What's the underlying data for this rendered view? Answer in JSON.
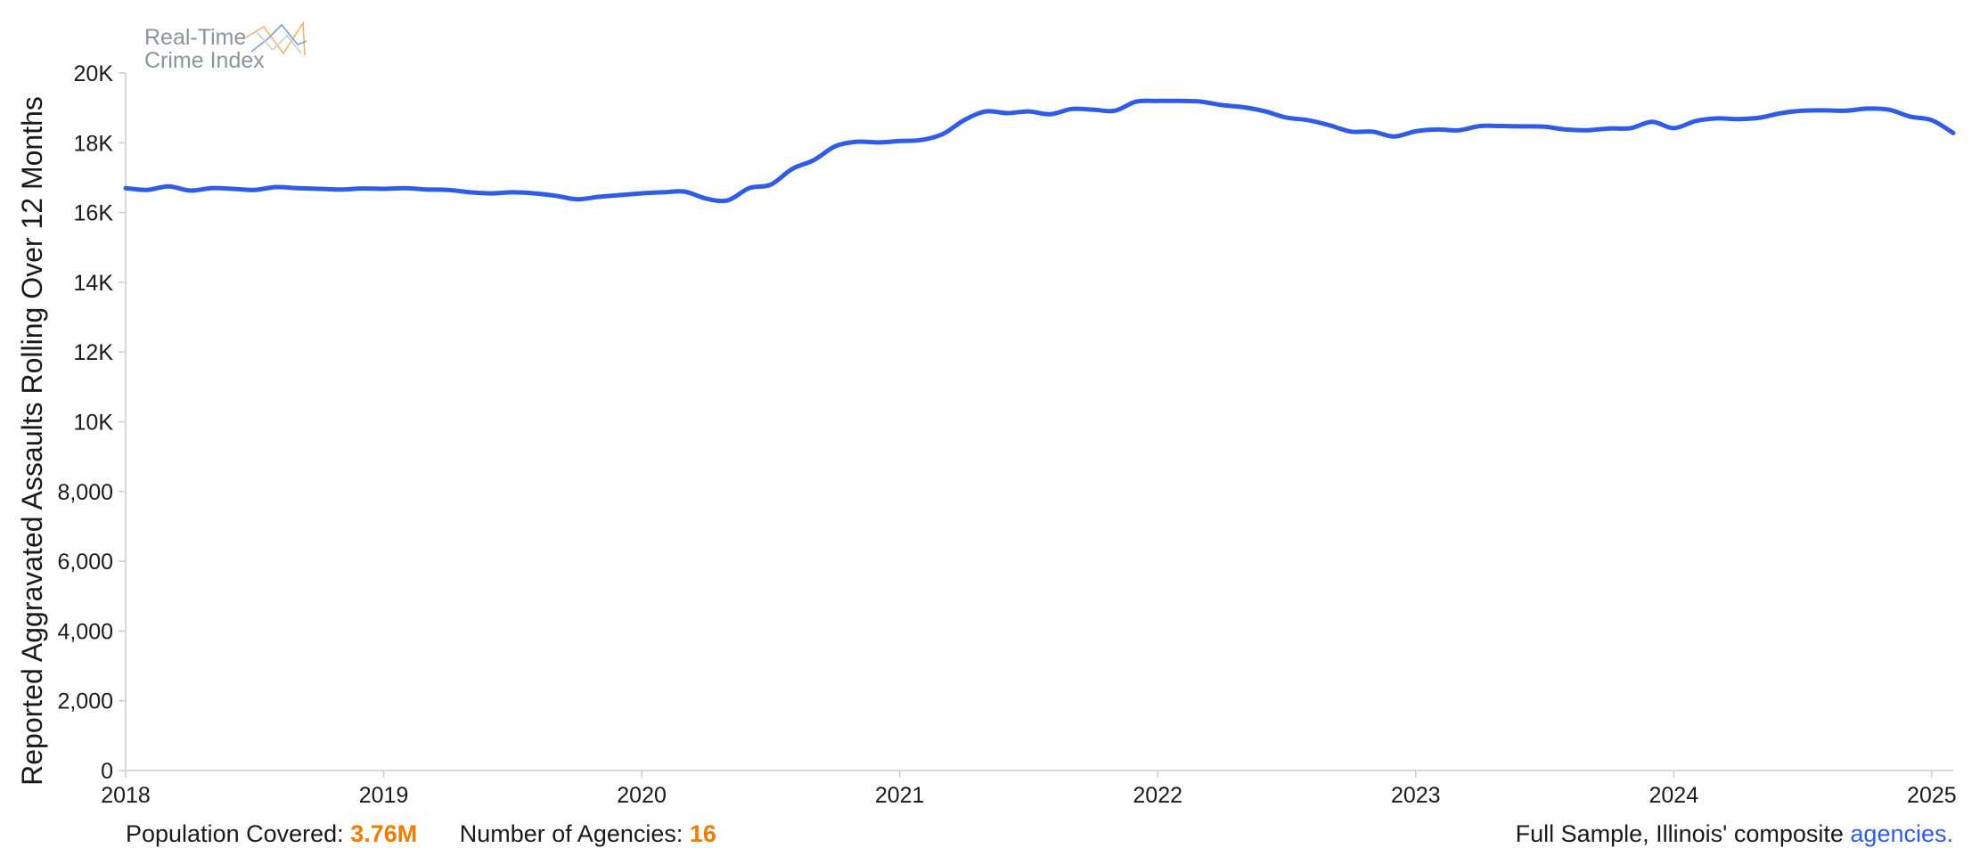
{
  "logo": {
    "line1": "Real-Time",
    "line2": "Crime Index"
  },
  "colors": {
    "line": "#2f5be8",
    "accent": "#f07d00",
    "link": "#2f5be8",
    "axis": "#cccccc",
    "text": "#1a1a1a"
  },
  "footer": {
    "population_label": "Population Covered:",
    "population_value": "3.76M",
    "agencies_label": "Number of Agencies:",
    "agencies_value": "16",
    "sample_text": "Full Sample, Illinois' composite",
    "agencies_link": "agencies."
  },
  "chart_data": {
    "type": "line",
    "title": "",
    "xlabel": "",
    "ylabel": "Reported Aggravated Assaults Rolling Over 12 Months",
    "xlim": [
      "2018-01",
      "2025-02"
    ],
    "ylim": [
      0,
      20000
    ],
    "grid": false,
    "legend": "none",
    "x_ticks": [
      "2018",
      "2019",
      "2020",
      "2021",
      "2022",
      "2023",
      "2024",
      "2025"
    ],
    "y_ticks": [
      {
        "value": 0,
        "label": "0"
      },
      {
        "value": 2000,
        "label": "2,000"
      },
      {
        "value": 4000,
        "label": "4,000"
      },
      {
        "value": 6000,
        "label": "6,000"
      },
      {
        "value": 8000,
        "label": "8,000"
      },
      {
        "value": 10000,
        "label": "10K"
      },
      {
        "value": 12000,
        "label": "12K"
      },
      {
        "value": 14000,
        "label": "14K"
      },
      {
        "value": 16000,
        "label": "16K"
      },
      {
        "value": 18000,
        "label": "18K"
      },
      {
        "value": 20000,
        "label": "20K"
      }
    ],
    "series": [
      {
        "x": [
          "2018-01",
          "2018-02",
          "2018-03",
          "2018-04",
          "2018-05",
          "2018-06",
          "2018-07",
          "2018-08",
          "2018-09",
          "2018-10",
          "2018-11",
          "2018-12",
          "2019-01",
          "2019-02",
          "2019-03",
          "2019-04",
          "2019-05",
          "2019-06",
          "2019-07",
          "2019-08",
          "2019-09",
          "2019-10",
          "2019-11",
          "2019-12",
          "2020-01",
          "2020-02",
          "2020-03",
          "2020-04",
          "2020-05",
          "2020-06",
          "2020-07",
          "2020-08",
          "2020-09",
          "2020-10",
          "2020-11",
          "2020-12",
          "2021-01",
          "2021-02",
          "2021-03",
          "2021-04",
          "2021-05",
          "2021-06",
          "2021-07",
          "2021-08",
          "2021-09",
          "2021-10",
          "2021-11",
          "2021-12",
          "2022-01",
          "2022-02",
          "2022-03",
          "2022-04",
          "2022-05",
          "2022-06",
          "2022-07",
          "2022-08",
          "2022-09",
          "2022-10",
          "2022-11",
          "2022-12",
          "2023-01",
          "2023-02",
          "2023-03",
          "2023-04",
          "2023-05",
          "2023-06",
          "2023-07",
          "2023-08",
          "2023-09",
          "2023-10",
          "2023-11",
          "2023-12",
          "2024-01",
          "2024-02",
          "2024-03",
          "2024-04",
          "2024-05",
          "2024-06",
          "2024-07",
          "2024-08",
          "2024-09",
          "2024-10",
          "2024-11",
          "2024-12",
          "2025-01",
          "2025-02"
        ],
        "values": [
          16700,
          16650,
          16750,
          16630,
          16700,
          16680,
          16650,
          16730,
          16700,
          16680,
          16660,
          16690,
          16680,
          16700,
          16660,
          16650,
          16580,
          16550,
          16580,
          16550,
          16480,
          16380,
          16450,
          16500,
          16550,
          16580,
          16600,
          16400,
          16350,
          16700,
          16800,
          17250,
          17500,
          17900,
          18030,
          18010,
          18050,
          18080,
          18250,
          18650,
          18900,
          18850,
          18900,
          18820,
          18970,
          18950,
          18920,
          19180,
          19200,
          19200,
          19180,
          19080,
          19020,
          18900,
          18720,
          18650,
          18500,
          18320,
          18320,
          18180,
          18330,
          18380,
          18360,
          18480,
          18480,
          18470,
          18460,
          18380,
          18360,
          18410,
          18420,
          18600,
          18420,
          18620,
          18700,
          18680,
          18720,
          18850,
          18920,
          18930,
          18920,
          18980,
          18950,
          18750,
          18650,
          18280
        ]
      }
    ]
  }
}
